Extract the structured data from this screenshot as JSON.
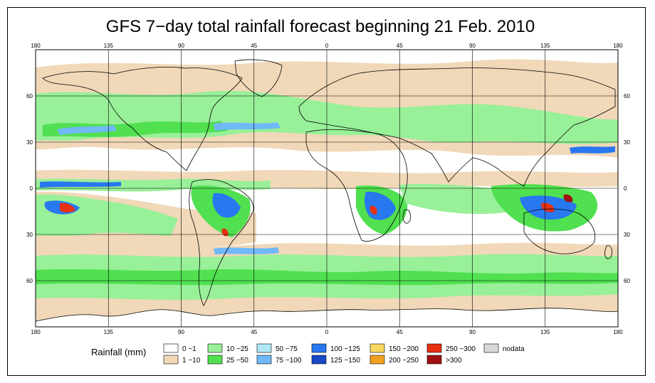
{
  "title": "GFS 7−day total rainfall forecast beginning 21 Feb. 2010",
  "map": {
    "lon_ticks": [
      "180",
      "135",
      "90",
      "45",
      "0",
      "45",
      "90",
      "135",
      "180"
    ],
    "lat_ticks": [
      "60",
      "30",
      "0",
      "30",
      "60"
    ],
    "lon_range": [
      -180,
      180
    ],
    "lat_range": [
      -90,
      90
    ],
    "ocean_color": "#ffffff"
  },
  "legend": {
    "label": "Rainfall (mm)",
    "items": [
      {
        "text": "0 −1",
        "color": "#ffffff"
      },
      {
        "text": "1 −10",
        "color": "#f0d8b8"
      },
      {
        "text": "10 −25",
        "color": "#98f098"
      },
      {
        "text": "25 −50",
        "color": "#50e050"
      },
      {
        "text": "50 −75",
        "color": "#b0e8f8"
      },
      {
        "text": "75 −100",
        "color": "#70b8f8"
      },
      {
        "text": "100 −125",
        "color": "#2878f0"
      },
      {
        "text": "125 −150",
        "color": "#1848c8"
      },
      {
        "text": "150 −200",
        "color": "#f8d860"
      },
      {
        "text": "200 −250",
        "color": "#f0a020"
      },
      {
        "text": "250 −300",
        "color": "#e83010"
      },
      {
        "text": ">300",
        "color": "#a01010"
      },
      {
        "text": "nodata",
        "color": "#d8d8d8"
      }
    ]
  }
}
